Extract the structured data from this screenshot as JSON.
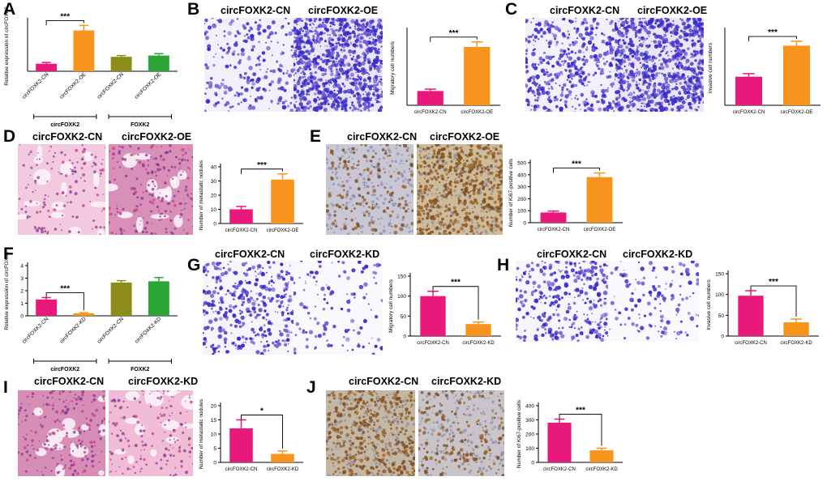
{
  "panels": {
    "A": {
      "letter": "A"
    },
    "B": {
      "letter": "B",
      "titles": [
        "circFOXK2-CN",
        "circFOXK2-OE"
      ]
    },
    "C": {
      "letter": "C",
      "titles": [
        "circFOXK2-CN",
        "circFOXK2-OE"
      ]
    },
    "D": {
      "letter": "D",
      "titles": [
        "circFOXK2-CN",
        "circFOXK2-OE"
      ]
    },
    "E": {
      "letter": "E",
      "titles": [
        "circFOXK2-CN",
        "circFOXK2-OE"
      ]
    },
    "F": {
      "letter": "F"
    },
    "G": {
      "letter": "G",
      "titles": [
        "circFOXK2-CN",
        "circFOXK2-KD"
      ]
    },
    "H": {
      "letter": "H",
      "titles": [
        "circFOXK2-CN",
        "circFOXK2-KD"
      ]
    },
    "I": {
      "letter": "I",
      "titles": [
        "circFOXK2-CN",
        "circFOXK2-KD"
      ]
    },
    "J": {
      "letter": "J",
      "titles": [
        "circFOXK2-CN",
        "circFOXK2-KD"
      ]
    }
  },
  "chart_data": [
    {
      "panel": "A",
      "type": "bar",
      "ylabel": "Relative expression of circFOXK2",
      "ylim": [
        0,
        8
      ],
      "yticks": [],
      "categories": [
        "circFOXK2-CN",
        "circFOXK2-OE",
        "circFOXK2-CN",
        "circFOXK2-OE"
      ],
      "values": [
        1.2,
        6.5,
        2.3,
        2.5
      ],
      "errors": [
        0.2,
        0.8,
        0.2,
        0.3
      ],
      "colors": [
        "#e8197a",
        "#f7941d",
        "#8c8c1a",
        "#2ba535"
      ],
      "significance": [
        {
          "from": 0,
          "to": 1,
          "label": "***"
        }
      ],
      "groups": [
        {
          "label": "circFOXK2",
          "from": 0,
          "to": 1
        },
        {
          "label": "FOXK2",
          "from": 2,
          "to": 3
        }
      ]
    },
    {
      "panel": "B",
      "type": "bar",
      "ylabel": "Migratory cell numbers",
      "ylim": [
        0,
        600
      ],
      "yticks": [],
      "categories": [
        "circFOXK2-CN",
        "circFOXK2-OE"
      ],
      "values": [
        115,
        470
      ],
      "errors": [
        15,
        40
      ],
      "colors": [
        "#e8197a",
        "#f7941d"
      ],
      "significance": [
        {
          "from": 0,
          "to": 1,
          "label": "***"
        }
      ]
    },
    {
      "panel": "C",
      "type": "bar",
      "ylabel": "Invasive cell numbers",
      "ylim": [
        0,
        600
      ],
      "yticks": [],
      "categories": [
        "circFOXK2-CN",
        "circFOXK2-OE"
      ],
      "values": [
        230,
        480
      ],
      "errors": [
        25,
        35
      ],
      "colors": [
        "#e8197a",
        "#f7941d"
      ],
      "significance": [
        {
          "from": 0,
          "to": 1,
          "label": "***"
        }
      ]
    },
    {
      "panel": "D",
      "type": "bar",
      "ylabel": "Number of metastatic nodules",
      "ylim": [
        0,
        40
      ],
      "yticks": [
        0,
        10,
        20,
        30,
        40
      ],
      "categories": [
        "circFOXK2-CN",
        "circFOXK2-OE"
      ],
      "values": [
        10,
        31
      ],
      "errors": [
        2,
        4
      ],
      "colors": [
        "#e8197a",
        "#f7941d"
      ],
      "significance": [
        {
          "from": 0,
          "to": 1,
          "label": "***"
        }
      ]
    },
    {
      "panel": "E",
      "type": "bar",
      "ylabel": "Number of Ki67-positive cells",
      "ylim": [
        0,
        500
      ],
      "yticks": [
        0,
        100,
        200,
        300,
        400,
        500
      ],
      "categories": [
        "circFOXK2-CN",
        "circFOXK2-OE"
      ],
      "values": [
        85,
        380
      ],
      "errors": [
        12,
        35
      ],
      "colors": [
        "#e8197a",
        "#f7941d"
      ],
      "significance": [
        {
          "from": 0,
          "to": 1,
          "label": "***"
        }
      ]
    },
    {
      "panel": "F",
      "type": "bar",
      "ylabel": "Relative expression of circFOXK2",
      "ylim": [
        0,
        4
      ],
      "yticks": [
        0,
        1,
        2,
        3,
        4
      ],
      "categories": [
        "circFOXK2-CN",
        "circFOXK2-KD",
        "circFOXK2-CN",
        "circFOXK2-KD"
      ],
      "values": [
        1.3,
        0.2,
        2.65,
        2.75
      ],
      "errors": [
        0.15,
        0.05,
        0.15,
        0.3
      ],
      "colors": [
        "#e8197a",
        "#f7941d",
        "#8c8c1a",
        "#2ba535"
      ],
      "significance": [
        {
          "from": 0,
          "to": 1,
          "label": "***"
        }
      ],
      "groups": [
        {
          "label": "circFOXK2",
          "from": 0,
          "to": 1
        },
        {
          "label": "FOXK2",
          "from": 2,
          "to": 3
        }
      ]
    },
    {
      "panel": "G",
      "type": "bar",
      "ylabel": "Migratory cell numbers",
      "ylim": [
        0,
        150
      ],
      "yticks": [
        0,
        50,
        100,
        150
      ],
      "categories": [
        "circFOXK2-CN",
        "circFOXK2-KD"
      ],
      "values": [
        100,
        30
      ],
      "errors": [
        12,
        5
      ],
      "colors": [
        "#e8197a",
        "#f7941d"
      ],
      "significance": [
        {
          "from": 0,
          "to": 1,
          "label": "***"
        }
      ]
    },
    {
      "panel": "H",
      "type": "bar",
      "ylabel": "Invasive cell numbers",
      "ylim": [
        0,
        150
      ],
      "yticks": [
        0,
        50,
        100,
        150
      ],
      "categories": [
        "circFOXK2-CN",
        "circFOXK2-KD"
      ],
      "values": [
        97,
        33
      ],
      "errors": [
        12,
        8
      ],
      "colors": [
        "#e8197a",
        "#f7941d"
      ],
      "significance": [
        {
          "from": 0,
          "to": 1,
          "label": "***"
        }
      ]
    },
    {
      "panel": "I",
      "type": "bar",
      "ylabel": "Number of metastatic nodules",
      "ylim": [
        0,
        20
      ],
      "yticks": [
        0,
        5,
        10,
        15,
        20
      ],
      "categories": [
        "circFOXK2-CN",
        "circFOXK2-KD"
      ],
      "values": [
        12,
        3
      ],
      "errors": [
        3,
        1
      ],
      "colors": [
        "#e8197a",
        "#f7941d"
      ],
      "significance": [
        {
          "from": 0,
          "to": 1,
          "label": "*"
        }
      ]
    },
    {
      "panel": "J",
      "type": "bar",
      "ylabel": "Number of Ki67-positive cells",
      "ylim": [
        0,
        400
      ],
      "yticks": [
        0,
        100,
        200,
        300,
        400
      ],
      "categories": [
        "circFOXK2-CN",
        "circFOXK2-KD"
      ],
      "values": [
        280,
        85
      ],
      "errors": [
        25,
        15
      ],
      "colors": [
        "#e8197a",
        "#f7941d"
      ],
      "significance": [
        {
          "from": 0,
          "to": 1,
          "label": "***"
        }
      ]
    }
  ]
}
